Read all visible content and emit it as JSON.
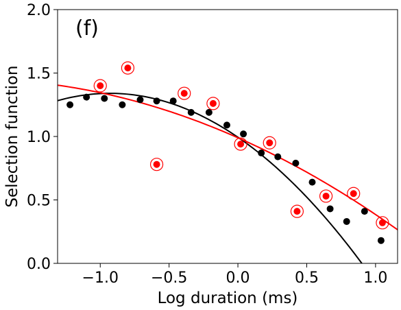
{
  "chart_data": {
    "type": "scatter",
    "panel_label": "(f)",
    "xlabel": "Log duration (ms)",
    "ylabel": "Selection function",
    "xlim": [
      -1.31,
      1.16
    ],
    "ylim": [
      0.0,
      2.0
    ],
    "xticks": [
      -1.0,
      -0.5,
      0.0,
      0.5,
      1.0
    ],
    "xtick_labels": [
      "−1.0",
      "−0.5",
      "0.0",
      "0.5",
      "1.0"
    ],
    "yticks": [
      0.0,
      0.5,
      1.0,
      1.5,
      2.0
    ],
    "ytick_labels": [
      "0.0",
      "0.5",
      "1.0",
      "1.5",
      "2.0"
    ],
    "grid": false,
    "colors": {
      "black": "#000000",
      "red": "#ff0000"
    },
    "series": [
      {
        "marker": "filled-circle",
        "color": "#000000",
        "points": [
          [
            -1.22,
            1.25
          ],
          [
            -1.1,
            1.31
          ],
          [
            -0.97,
            1.3
          ],
          [
            -0.84,
            1.25
          ],
          [
            -0.71,
            1.29
          ],
          [
            -0.59,
            1.28
          ],
          [
            -0.47,
            1.28
          ],
          [
            -0.34,
            1.19
          ],
          [
            -0.21,
            1.19
          ],
          [
            -0.08,
            1.09
          ],
          [
            0.04,
            1.02
          ],
          [
            0.17,
            0.87
          ],
          [
            0.29,
            0.84
          ],
          [
            0.42,
            0.79
          ],
          [
            0.54,
            0.64
          ],
          [
            0.67,
            0.43
          ],
          [
            0.79,
            0.33
          ],
          [
            0.92,
            0.41
          ],
          [
            1.04,
            0.18
          ]
        ]
      },
      {
        "marker": "filled-circle-with-ring",
        "color": "#ff0000",
        "points": [
          [
            -1.0,
            1.4
          ],
          [
            -0.8,
            1.54
          ],
          [
            -0.59,
            0.78
          ],
          [
            -0.39,
            1.34
          ],
          [
            -0.18,
            1.26
          ],
          [
            0.02,
            0.94
          ],
          [
            0.23,
            0.95
          ],
          [
            0.43,
            0.41
          ],
          [
            0.64,
            0.53
          ],
          [
            0.84,
            0.55
          ],
          [
            1.05,
            0.32
          ]
        ]
      }
    ],
    "fits": [
      {
        "type": "quadratic",
        "color": "#000000",
        "coefficients": {
          "a": -0.4,
          "vertex_x": -0.93,
          "vertex_y": 1.34
        }
      },
      {
        "type": "quadratic",
        "color": "#ff0000",
        "coefficients": {
          "c0": 0.99,
          "c1": -0.48,
          "c2": -0.125
        }
      }
    ]
  }
}
